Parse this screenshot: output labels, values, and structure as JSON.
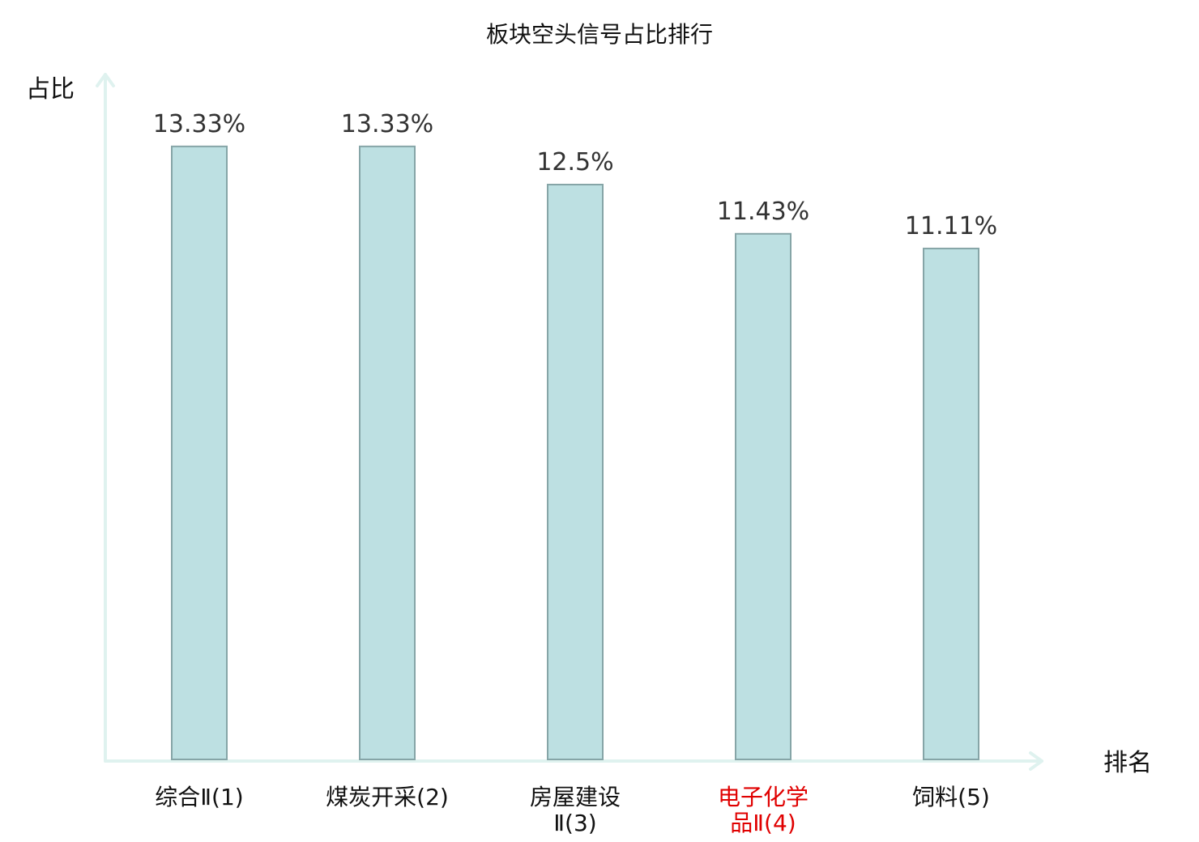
{
  "chart_data": {
    "type": "bar",
    "title": "板块空头信号占比排行",
    "ylabel": "占比",
    "xlabel": "排名",
    "categories": [
      {
        "lines": [
          "综合Ⅱ(1)"
        ],
        "highlight": false
      },
      {
        "lines": [
          "煤炭开采(2)"
        ],
        "highlight": false
      },
      {
        "lines": [
          "房屋建设",
          "Ⅱ(3)"
        ],
        "highlight": false
      },
      {
        "lines": [
          "电子化学",
          "品Ⅱ(4)"
        ],
        "highlight": true
      },
      {
        "lines": [
          "饲料(5)"
        ],
        "highlight": false
      }
    ],
    "values": [
      13.33,
      13.33,
      12.5,
      11.43,
      11.11
    ],
    "value_labels": [
      "13.33%",
      "13.33%",
      "12.5%",
      "11.43%",
      "11.11%"
    ],
    "grid": false,
    "colors": {
      "bar_fill": "#bde0e2",
      "bar_stroke": "#86a5a7",
      "axis": "#dff2ef",
      "highlight_label": "#e00000"
    }
  }
}
